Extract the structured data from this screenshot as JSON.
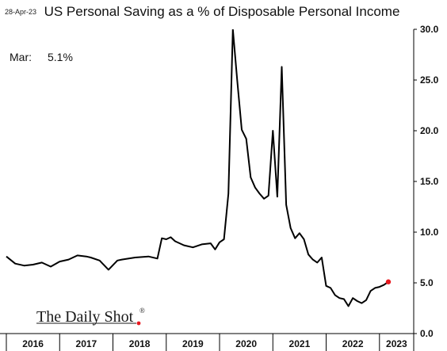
{
  "header": {
    "date": "28-Apr-23",
    "title": "US Personal Saving as a % of Disposable Personal Income"
  },
  "annotation": {
    "label": "Mar:",
    "value": "5.1%"
  },
  "brand": {
    "name": "The Daily Shot",
    "mark": "®"
  },
  "colors": {
    "line": "#000000",
    "last_point": "#e8191f",
    "brand_dot": "#e8191f"
  },
  "chart_data": {
    "type": "line",
    "title": "US Personal Saving as a % of Disposable Personal Income",
    "xlabel": "",
    "ylabel": "",
    "ylim": [
      0,
      30
    ],
    "yticks": [
      0,
      5,
      10,
      15,
      20,
      25,
      30
    ],
    "ytick_labels": [
      "0.0",
      "5.0",
      "10.0",
      "15.0",
      "20.0",
      "25.0",
      "30.0"
    ],
    "xlim": [
      "2016-01",
      "2023-03"
    ],
    "xtick_labels": [
      "2016",
      "2017",
      "2018",
      "2019",
      "2020",
      "2021",
      "2022",
      "2023"
    ],
    "grid": false,
    "y_axis_position": "right",
    "series": [
      {
        "x": [
          "2016-01",
          "2016-03",
          "2016-05",
          "2016-07",
          "2016-09",
          "2016-11",
          "2017-01",
          "2017-03",
          "2017-05",
          "2017-07",
          "2017-08",
          "2017-10",
          "2017-12",
          "2018-02",
          "2018-03",
          "2018-06",
          "2018-09",
          "2018-11",
          "2018-12",
          "2019-01",
          "2019-02",
          "2019-03",
          "2019-05",
          "2019-07",
          "2019-09",
          "2019-11",
          "2019-12",
          "2020-01",
          "2020-02",
          "2020-03",
          "2020-04",
          "2020-05",
          "2020-06",
          "2020-07",
          "2020-08",
          "2020-09",
          "2020-10",
          "2020-11",
          "2020-12",
          "2021-01",
          "2021-02",
          "2021-03",
          "2021-04",
          "2021-05",
          "2021-06",
          "2021-07",
          "2021-08",
          "2021-09",
          "2021-10",
          "2021-11",
          "2021-12",
          "2022-01",
          "2022-02",
          "2022-03",
          "2022-04",
          "2022-05",
          "2022-06",
          "2022-07",
          "2022-08",
          "2022-09",
          "2022-10",
          "2022-11",
          "2022-12",
          "2023-01",
          "2023-02",
          "2023-03"
        ],
        "values": [
          7.6,
          6.9,
          6.7,
          6.8,
          7.0,
          6.6,
          7.1,
          7.3,
          7.7,
          7.6,
          7.5,
          7.2,
          6.3,
          7.2,
          7.3,
          7.5,
          7.6,
          7.4,
          9.4,
          9.3,
          9.5,
          9.1,
          8.7,
          8.5,
          8.8,
          8.9,
          8.3,
          9.0,
          9.3,
          13.8,
          32.0,
          24.9,
          20.1,
          19.2,
          15.4,
          14.4,
          13.8,
          13.3,
          13.6,
          20.0,
          13.5,
          26.3,
          12.7,
          10.4,
          9.4,
          9.9,
          9.3,
          7.8,
          7.3,
          7.0,
          7.5,
          4.7,
          4.5,
          3.8,
          3.5,
          3.4,
          2.7,
          3.5,
          3.2,
          3.0,
          3.3,
          4.2,
          4.5,
          4.6,
          4.8,
          5.1
        ]
      }
    ]
  }
}
